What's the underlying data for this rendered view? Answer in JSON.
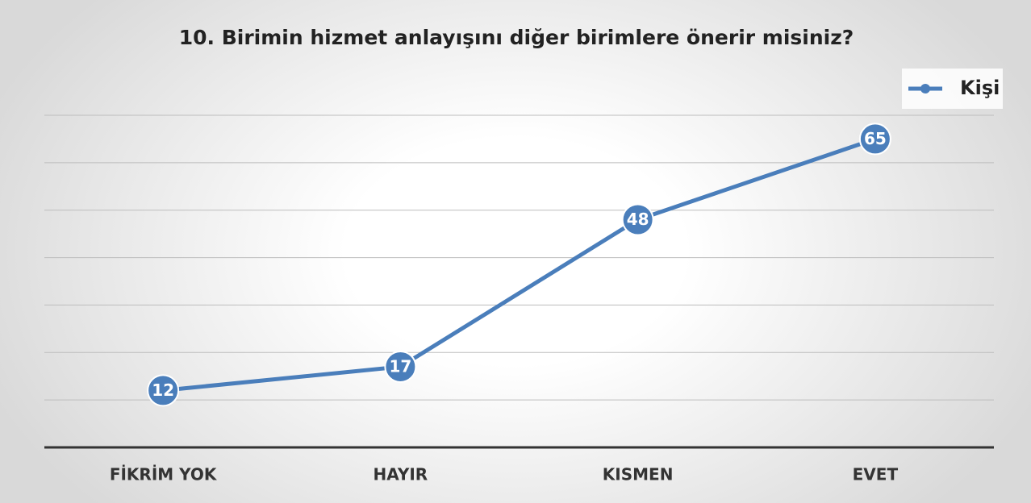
{
  "chart_data": {
    "type": "line",
    "title": "10. Birimin hizmet anlayışını diğer birimlere önerir misiniz?",
    "categories": [
      "FİKRİM YOK",
      "HAYIR",
      "KISMEN",
      "EVET"
    ],
    "series": [
      {
        "name": "Kişi",
        "color": "#4a7ebb",
        "values": [
          12,
          17,
          48,
          65
        ]
      }
    ],
    "ylim": [
      0,
      70
    ],
    "yticks": [
      0,
      10,
      20,
      30,
      40,
      50,
      60,
      70
    ],
    "grid": true,
    "legend": "top-right"
  }
}
